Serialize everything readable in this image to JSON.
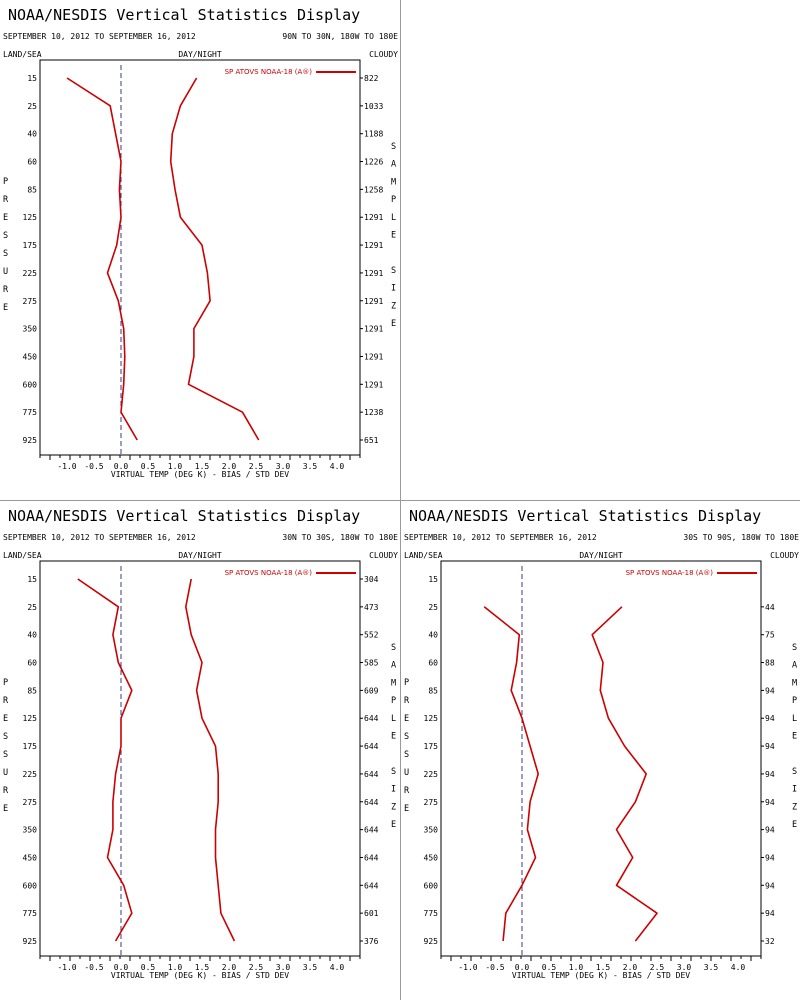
{
  "panel_text": {
    "title": "NOAA/NESDIS Vertical Statistics Display",
    "date_range": "SEPTEMBER 10, 2012 TO SEPTEMBER 16, 2012",
    "land_sea": "LAND/SEA",
    "day_night": "DAY/NIGHT",
    "cloudy": "CLOUDY",
    "left_axis_letters": [
      "P",
      "R",
      "E",
      "S",
      "S",
      "U",
      "R",
      "E"
    ],
    "right_axis_letters": [
      "S",
      "A",
      "M",
      "P",
      "L",
      "E",
      "",
      "S",
      "I",
      "Z",
      "E"
    ],
    "xlabel": "VIRTUAL TEMP (DEG K) - BIAS / STD DEV",
    "legend": "SP ATOVS NOAA-18 (A®)"
  },
  "colors": {
    "line": "#cc0000",
    "zero_line": "#3a3a8a",
    "axis": "#000000"
  },
  "chart_data": [
    {
      "type": "line",
      "region": "90N TO 30N, 180W TO 180E",
      "pressure_levels": [
        15,
        25,
        40,
        60,
        85,
        125,
        175,
        225,
        275,
        350,
        450,
        600,
        775,
        925
      ],
      "xlim": [
        -1.5,
        4.5
      ],
      "xticks": [
        "-1.0",
        "-0.5",
        "0.0",
        "0.5",
        "1.0",
        "1.5",
        "2.0",
        "2.5",
        "3.0",
        "3.5",
        "4.0"
      ],
      "series": [
        {
          "values": [
            -1.0,
            -0.2,
            -0.1,
            0.0,
            -0.03,
            0.0,
            -0.08,
            -0.25,
            -0.05,
            0.05,
            0.07,
            0.05,
            0.0,
            0.3
          ]
        },
        {
          "values": [
            1.4,
            1.1,
            0.95,
            0.92,
            1.0,
            1.1,
            1.5,
            1.6,
            1.65,
            1.35,
            1.35,
            1.25,
            2.25,
            2.55
          ]
        }
      ],
      "sample_size": [
        "822",
        "1033",
        "1188",
        "1226",
        "1258",
        "1291",
        "1291",
        "1291",
        "1291",
        "1291",
        "1291",
        "1291",
        "1238",
        "651"
      ]
    },
    {
      "type": "line",
      "region": "30N TO 30S, 180W TO 180E",
      "pressure_levels": [
        15,
        25,
        40,
        60,
        85,
        125,
        175,
        225,
        275,
        350,
        450,
        600,
        775,
        925
      ],
      "xlim": [
        -1.5,
        4.5
      ],
      "xticks": [
        "-1.0",
        "-0.5",
        "0.0",
        "0.5",
        "1.0",
        "1.5",
        "2.0",
        "2.5",
        "3.0",
        "3.5",
        "4.0"
      ],
      "series": [
        {
          "values": [
            -0.8,
            -0.05,
            -0.15,
            -0.05,
            0.2,
            0.0,
            0.0,
            -0.1,
            -0.15,
            -0.15,
            -0.25,
            0.05,
            0.2,
            -0.1
          ]
        },
        {
          "values": [
            1.3,
            1.2,
            1.3,
            1.5,
            1.4,
            1.5,
            1.75,
            1.8,
            1.8,
            1.75,
            1.75,
            1.8,
            1.85,
            2.1
          ]
        }
      ],
      "sample_size": [
        "304",
        "473",
        "552",
        "585",
        "609",
        "644",
        "644",
        "644",
        "644",
        "644",
        "644",
        "644",
        "601",
        "376"
      ]
    },
    {
      "type": "line",
      "region": "30S TO 90S, 180W TO 180E",
      "pressure_levels": [
        25,
        40,
        60,
        85,
        125,
        175,
        225,
        275,
        350,
        450,
        600,
        775,
        925
      ],
      "xlim": [
        -1.5,
        4.5
      ],
      "xticks": [
        "-1.0",
        "-0.5",
        "0.0",
        "0.5",
        "1.0",
        "1.5",
        "2.0",
        "2.5",
        "3.0",
        "3.5",
        "4.0"
      ],
      "series": [
        {
          "values": [
            -0.7,
            -0.05,
            -0.1,
            -0.2,
            0.0,
            0.15,
            0.3,
            0.15,
            0.1,
            0.25,
            0.0,
            -0.3,
            -0.35
          ]
        },
        {
          "values": [
            1.85,
            1.3,
            1.5,
            1.45,
            1.6,
            1.9,
            2.3,
            2.1,
            1.75,
            2.05,
            1.75,
            2.5,
            2.1
          ]
        }
      ],
      "sample_size": [
        "44",
        "75",
        "88",
        "94",
        "94",
        "94",
        "94",
        "94",
        "94",
        "94",
        "94",
        "94",
        "32"
      ]
    }
  ]
}
